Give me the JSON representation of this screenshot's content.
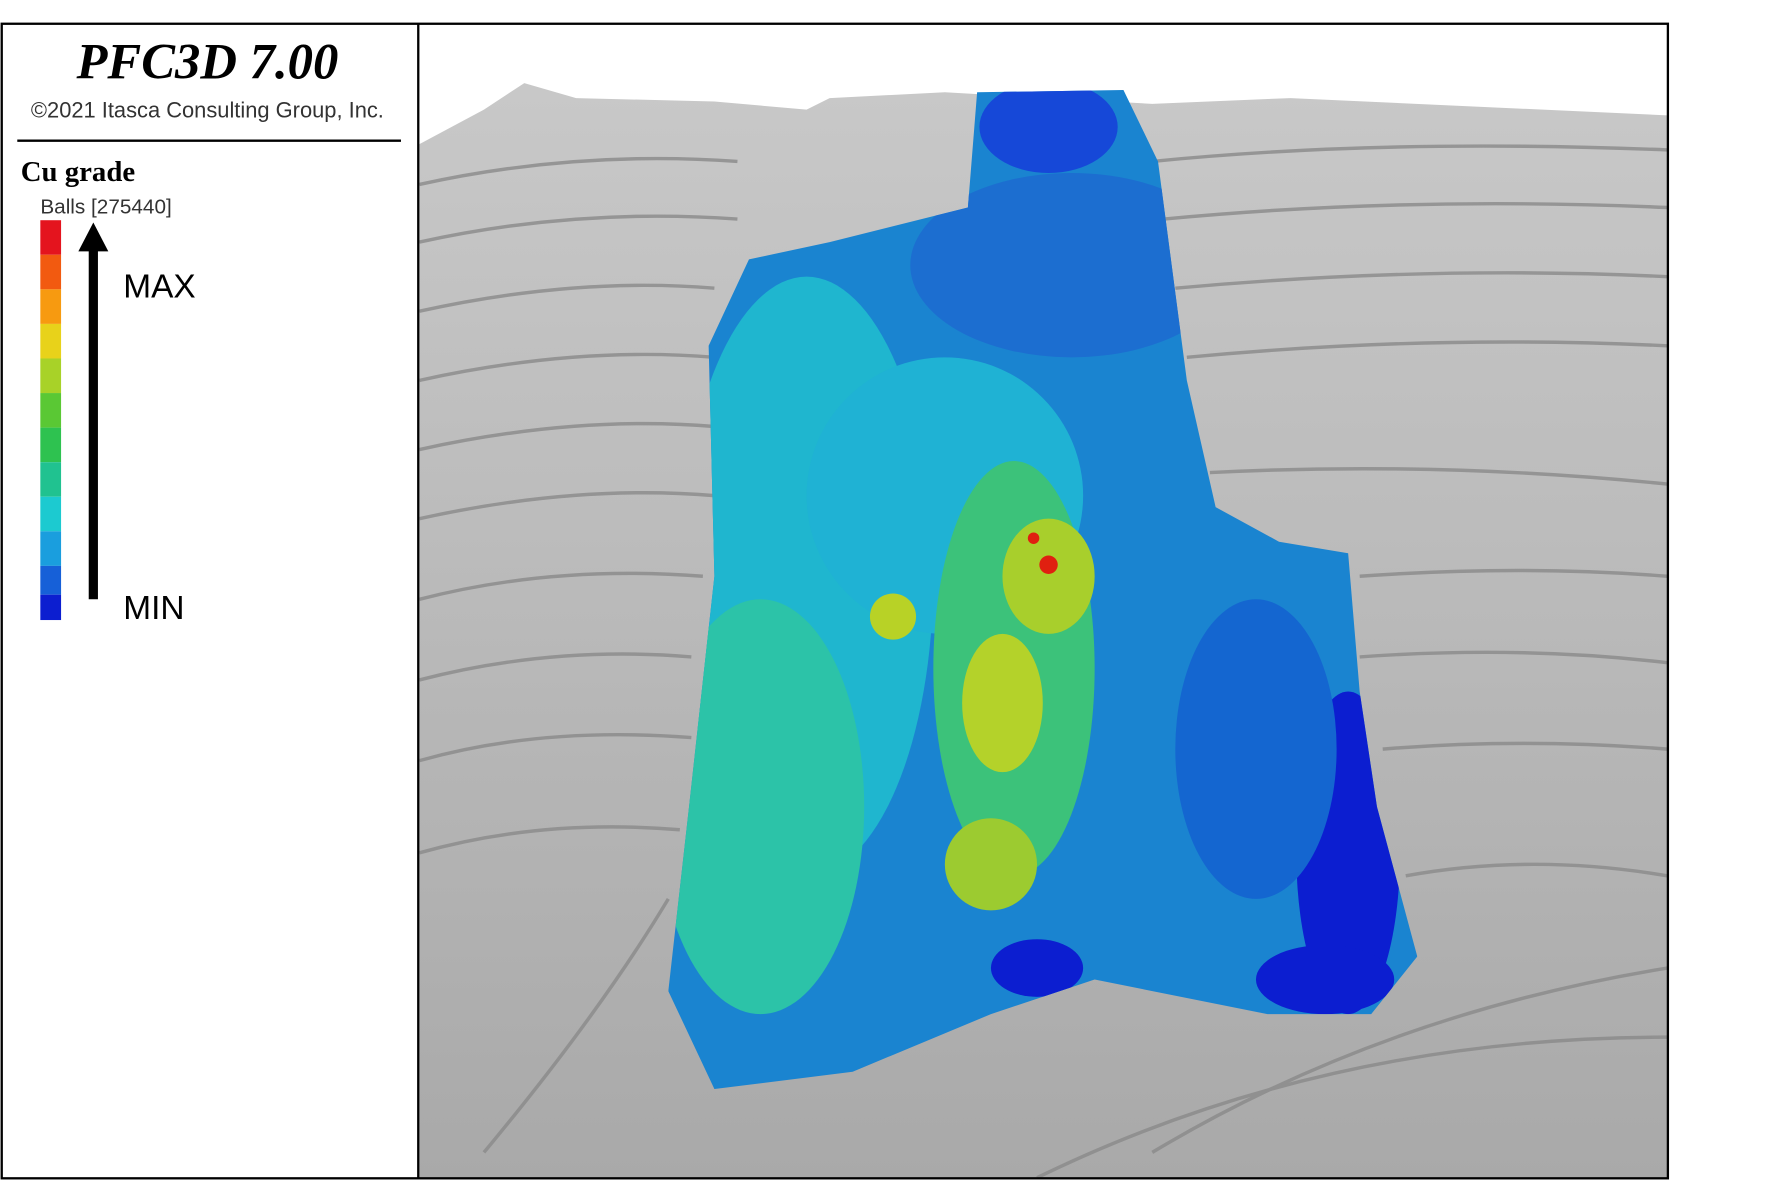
{
  "header": {
    "title": "PFC3D 7.00",
    "copyright": "©2021 Itasca Consulting Group, Inc."
  },
  "legend": {
    "title": "Cu grade",
    "subtitle": "Balls [275440]",
    "max": "MAX",
    "min": "MIN"
  }
}
